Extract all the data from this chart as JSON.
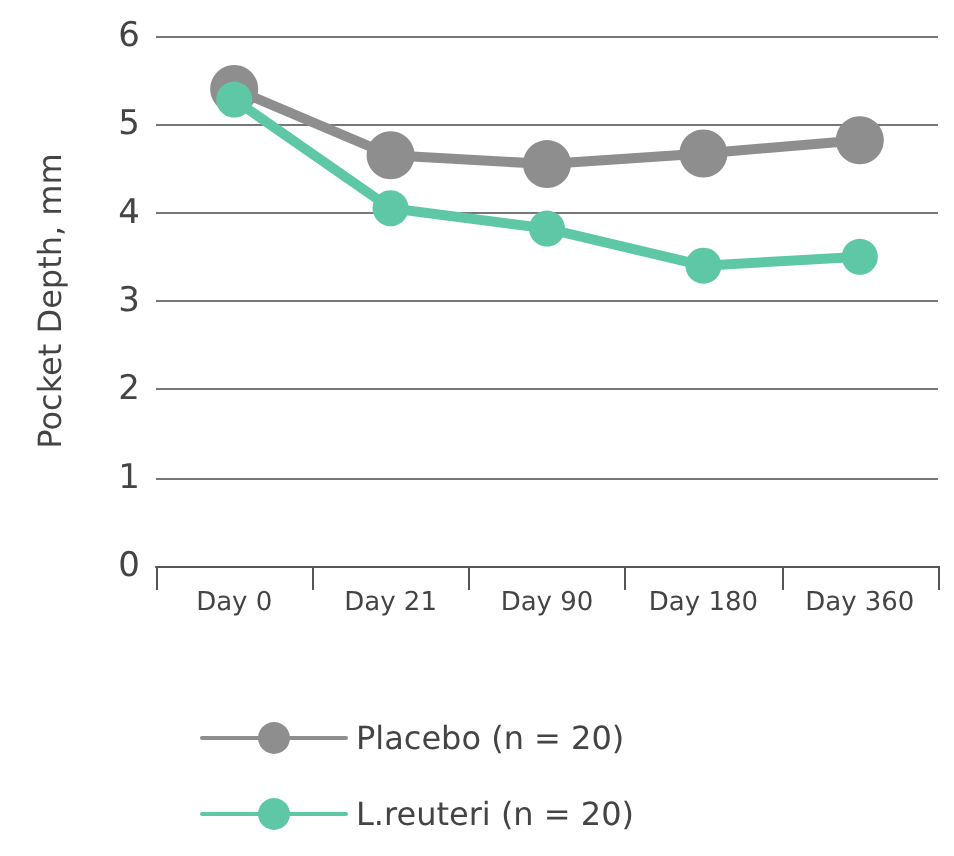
{
  "chart_data": {
    "type": "line",
    "ylabel": "Pocket Depth, mm",
    "categories": [
      "Day 0",
      "Day 21",
      "Day 90",
      "Day 180",
      "Day 360"
    ],
    "series": [
      {
        "name": "Placebo (n = 20)",
        "color": "#8e8e8e",
        "values": [
          5.4,
          4.65,
          4.55,
          4.67,
          4.82
        ]
      },
      {
        "name": "L.reuteri (n = 20)",
        "color": "#5ec8a6",
        "values": [
          5.28,
          4.05,
          3.82,
          3.4,
          3.5
        ]
      }
    ],
    "ylim": [
      0,
      6
    ],
    "yticks": [
      0,
      1,
      2,
      3,
      4,
      5,
      6
    ],
    "grid": "y",
    "legend": "bottom",
    "marker": "circle",
    "line_style": "solid"
  }
}
